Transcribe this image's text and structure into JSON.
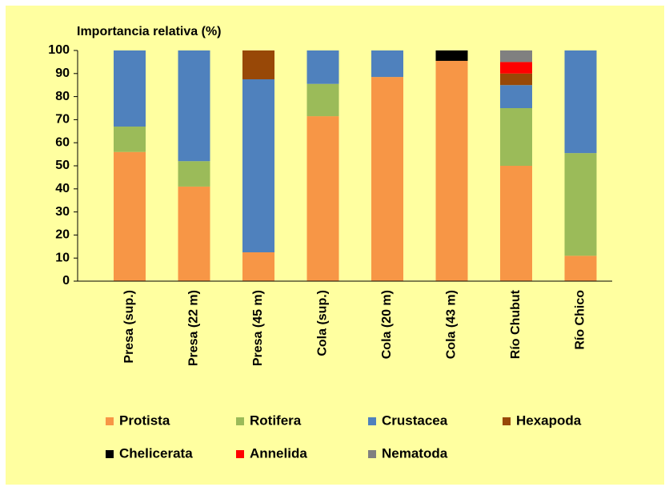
{
  "chart_data": {
    "type": "stacked_bar",
    "title": "Importancia relativa (%)",
    "categories": [
      "Presa (sup.)",
      "Presa (22 m)",
      "Presa (45 m)",
      "Cola (sup.)",
      "Cola (20 m)",
      "Cola (43 m)",
      "Río Chubut",
      "Río Chico"
    ],
    "series": [
      {
        "name": "Protista",
        "color": "#f79646",
        "values": [
          56,
          41,
          12.5,
          71.5,
          88.5,
          95.5,
          50,
          11
        ]
      },
      {
        "name": "Rotifera",
        "color": "#9bbb59",
        "values": [
          11,
          11,
          null,
          14,
          null,
          null,
          25,
          44.5
        ]
      },
      {
        "name": "Crustacea",
        "color": "#4f81bd",
        "values": [
          33,
          48,
          75,
          14.5,
          11.5,
          null,
          10,
          44.5
        ]
      },
      {
        "name": "Hexapoda",
        "color": "#984807",
        "values": [
          null,
          null,
          12.5,
          null,
          null,
          null,
          5,
          null
        ]
      },
      {
        "name": "Chelicerata",
        "color": "#000000",
        "values": [
          null,
          null,
          null,
          null,
          null,
          4.5,
          null,
          null
        ]
      },
      {
        "name": "Annelida",
        "color": "#ff0000",
        "values": [
          null,
          null,
          null,
          null,
          null,
          null,
          5,
          null
        ]
      },
      {
        "name": "Nematoda",
        "color": "#808080",
        "values": [
          null,
          null,
          null,
          null,
          null,
          null,
          5,
          null
        ]
      }
    ],
    "ylim": [
      0,
      100
    ],
    "yticks": [
      0,
      10,
      20,
      30,
      40,
      50,
      60,
      70,
      80,
      90,
      100
    ],
    "grid": false,
    "legend": "bottom"
  }
}
